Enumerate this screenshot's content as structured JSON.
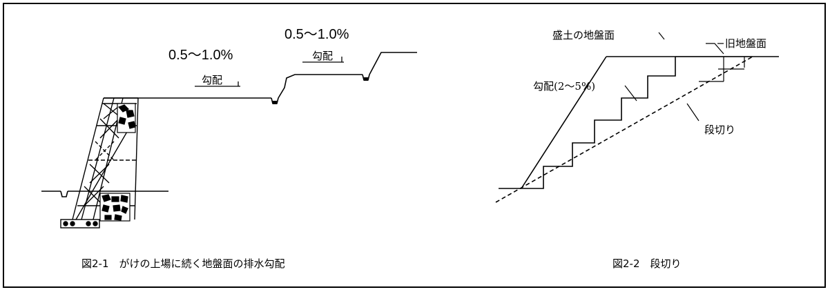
{
  "fig1": {
    "grade_low": "0.5～1.0%",
    "grade_high": "0.5～1.0%",
    "slope_low": "勾配",
    "slope_high": "勾配",
    "caption": "図2-1　がけの上場に続く地盤面の排水勾配"
  },
  "fig2": {
    "fill_surface": "盛土の地盤面",
    "old_surface": "旧地盤面",
    "slope": "勾配(2～5%)",
    "benching": "段切り",
    "caption": "図2-2　段切り"
  }
}
